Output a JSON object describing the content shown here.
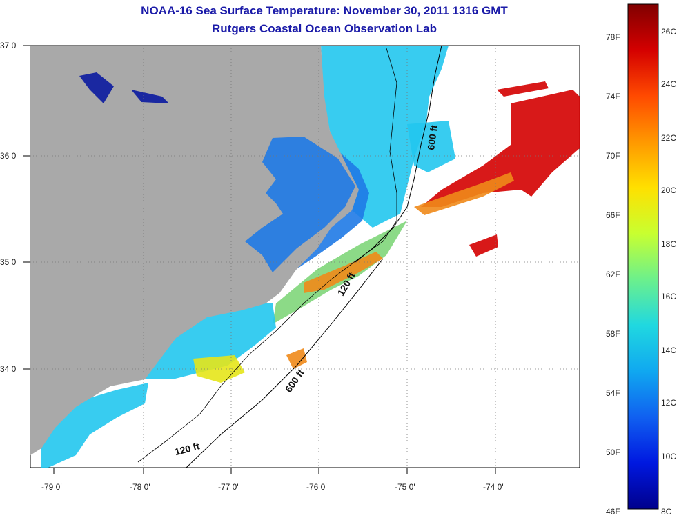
{
  "header": {
    "title": "NOAA-16 Sea Surface Temperature:  November 30, 2011 1316 GMT",
    "subtitle": "Rutgers Coastal Ocean Observation Lab"
  },
  "map": {
    "lat_ticks": [
      "37 0'",
      "36 0'",
      "35 0'",
      "34 0'"
    ],
    "lon_ticks": [
      "-79 0'",
      "-78 0'",
      "-77 0'",
      "-76 0'",
      "-75 0'",
      "-74 0'"
    ],
    "contours": {
      "c600_north": "600 ft",
      "c120_mid": "120 ft",
      "c600_south": "600 ft",
      "c120_south": "120 ft"
    },
    "colors": {
      "land": "#a9a9a9",
      "warm": "#d40000",
      "orange": "#f08a1a",
      "yellow": "#e6e61a",
      "green": "#7fd67a",
      "cyan": "#22c6ee",
      "blue": "#1f7ae6",
      "navy": "#0a1aa0"
    }
  },
  "colorbar": {
    "fahrenheit": [
      "78F",
      "74F",
      "70F",
      "66F",
      "62F",
      "58F",
      "54F",
      "50F",
      "46F"
    ],
    "celsius": [
      "26C",
      "24C",
      "22C",
      "20C",
      "18C",
      "16C",
      "14C",
      "12C",
      "10C",
      "8C"
    ],
    "gradient": [
      "#800000",
      "#d40000",
      "#ff4a00",
      "#ff9800",
      "#ffe000",
      "#c8ff30",
      "#6cf08c",
      "#20d8e0",
      "#10a8f0",
      "#1060f0",
      "#0018e0",
      "#00008c"
    ]
  }
}
